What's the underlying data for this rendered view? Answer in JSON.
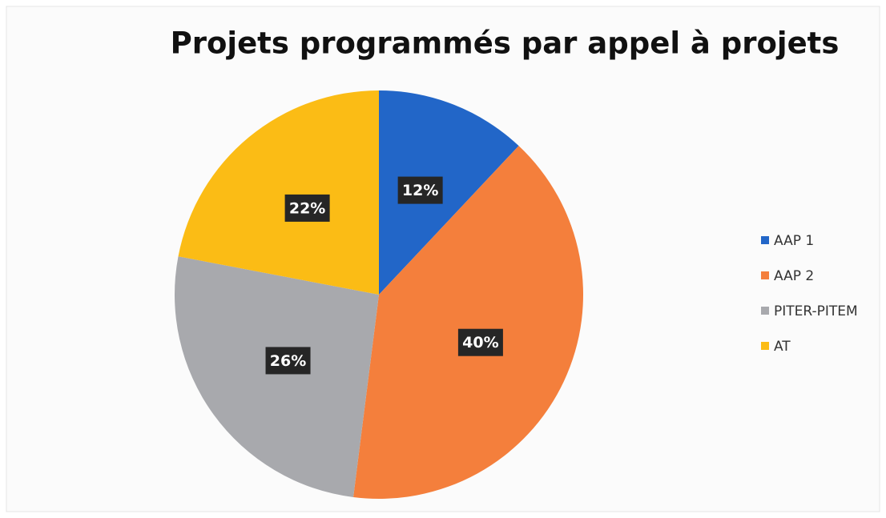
{
  "chart_data": {
    "type": "pie",
    "title": "Projets programmés par appel à projets",
    "categories": [
      "AAP 1",
      "AAP 2",
      "PITER-PITEM",
      "AT"
    ],
    "values": [
      12,
      40,
      26,
      22
    ],
    "value_labels": [
      "12%",
      "40%",
      "26%",
      "22%"
    ],
    "colors": [
      "#2266c8",
      "#f47f3c",
      "#a8a9ad",
      "#fbbc15"
    ],
    "legend": "right"
  }
}
